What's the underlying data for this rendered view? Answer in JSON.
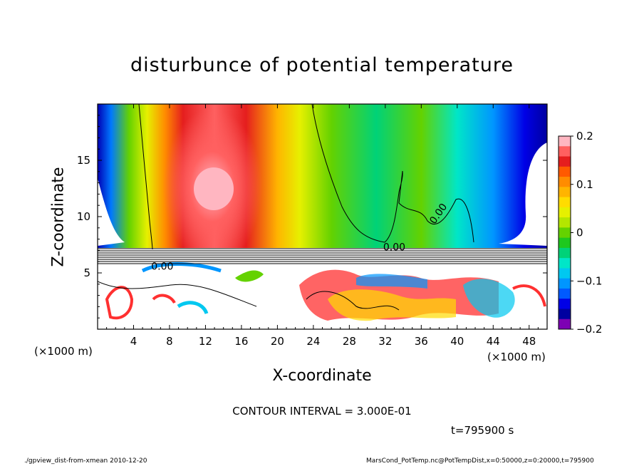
{
  "chart_data": {
    "type": "heatmap",
    "title": "disturbunce of potential temperature",
    "xlabel": "X-coordinate",
    "ylabel": "Z-coordinate",
    "x_unit": "(×1000 m)",
    "x_ticks": [
      4,
      8,
      12,
      16,
      20,
      24,
      28,
      32,
      36,
      40,
      44,
      48
    ],
    "y_ticks": [
      5,
      10,
      15
    ],
    "xlim": [
      0,
      50
    ],
    "ylim": [
      0,
      20
    ],
    "colorbar": {
      "ticks": [
        "0.2",
        "0.1",
        "0",
        "−0.1",
        "−0.2"
      ],
      "range": [
        -0.2,
        0.2
      ],
      "colors": [
        "#ffb6c1",
        "#ff6060",
        "#e51e1e",
        "#ff5a00",
        "#ff8c00",
        "#ffb400",
        "#ffdc00",
        "#e6f000",
        "#b4e600",
        "#64d200",
        "#1ec81e",
        "#00d278",
        "#00e6c8",
        "#00c8f0",
        "#0096ff",
        "#005aff",
        "#0000e6",
        "#0000a0",
        "#7d00b4"
      ]
    },
    "contour_labels": [
      "0.00",
      "0.00",
      "0.00"
    ],
    "contour_interval": "CONTOUR INTERVAL = 3.000E-01",
    "time": "t=795900 s"
  },
  "footer": {
    "left": "./gpview_dist-from-xmean  2010-12-20",
    "right": "MarsCond_PotTemp.nc@PotTempDist,x=0:50000,z=0:20000,t=795900"
  }
}
